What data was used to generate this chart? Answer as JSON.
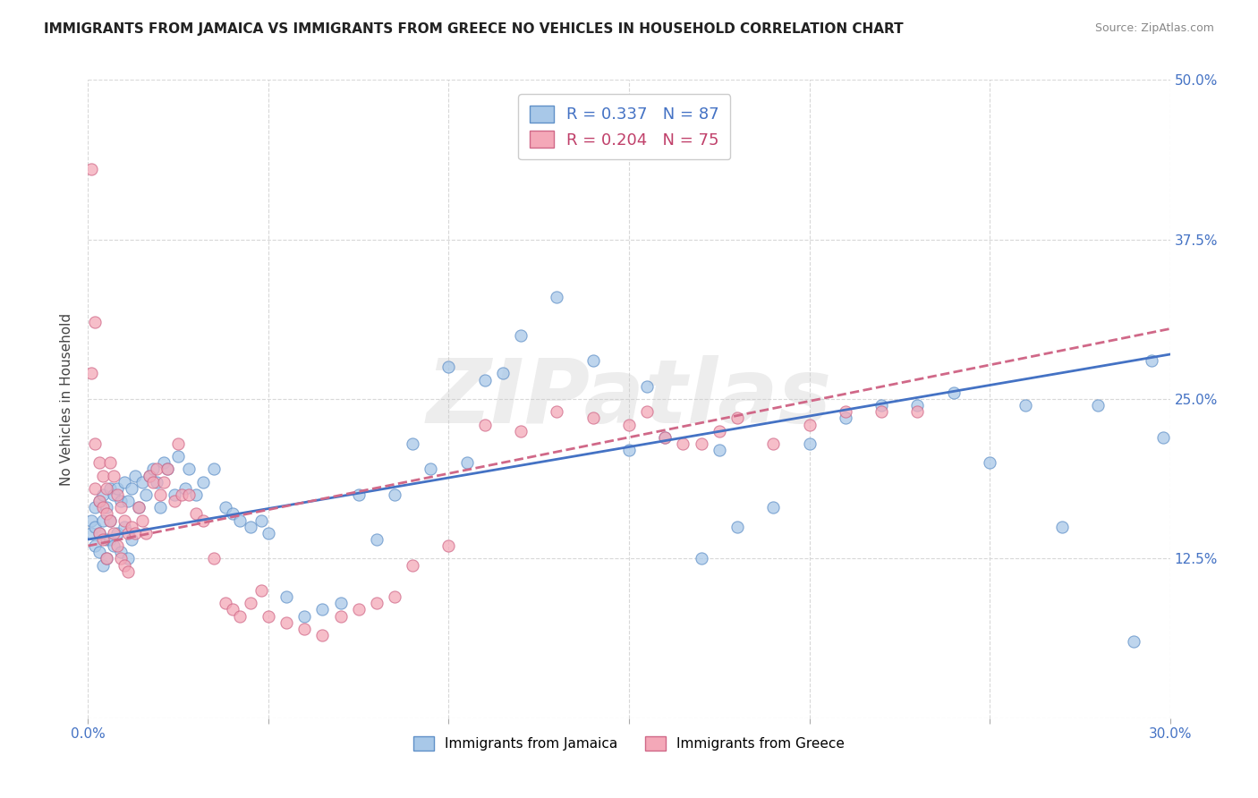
{
  "title": "IMMIGRANTS FROM JAMAICA VS IMMIGRANTS FROM GREECE NO VEHICLES IN HOUSEHOLD CORRELATION CHART",
  "source": "Source: ZipAtlas.com",
  "ylabel": "No Vehicles in Household",
  "xlim": [
    0.0,
    0.3
  ],
  "ylim": [
    0.0,
    0.5
  ],
  "jamaica_R": 0.337,
  "jamaica_N": 87,
  "greece_R": 0.204,
  "greece_N": 75,
  "jamaica_color": "#a8c8e8",
  "greece_color": "#f4a8b8",
  "jamaica_edge_color": "#6090c8",
  "greece_edge_color": "#d06888",
  "jamaica_line_color": "#4472c4",
  "greece_line_color": "#d06888",
  "watermark": "ZIPatlas",
  "jamaica_x": [
    0.001,
    0.001,
    0.002,
    0.002,
    0.002,
    0.003,
    0.003,
    0.003,
    0.004,
    0.004,
    0.004,
    0.005,
    0.005,
    0.005,
    0.006,
    0.006,
    0.006,
    0.007,
    0.007,
    0.008,
    0.008,
    0.009,
    0.009,
    0.01,
    0.01,
    0.011,
    0.011,
    0.012,
    0.012,
    0.013,
    0.014,
    0.015,
    0.016,
    0.017,
    0.018,
    0.019,
    0.02,
    0.021,
    0.022,
    0.024,
    0.025,
    0.027,
    0.028,
    0.03,
    0.032,
    0.035,
    0.038,
    0.04,
    0.042,
    0.045,
    0.048,
    0.05,
    0.055,
    0.06,
    0.065,
    0.07,
    0.075,
    0.08,
    0.085,
    0.09,
    0.095,
    0.1,
    0.105,
    0.11,
    0.115,
    0.12,
    0.13,
    0.14,
    0.15,
    0.155,
    0.16,
    0.17,
    0.175,
    0.18,
    0.19,
    0.2,
    0.21,
    0.22,
    0.23,
    0.24,
    0.25,
    0.26,
    0.27,
    0.28,
    0.29,
    0.295,
    0.298
  ],
  "jamaica_y": [
    0.145,
    0.155,
    0.135,
    0.165,
    0.15,
    0.17,
    0.145,
    0.13,
    0.175,
    0.155,
    0.12,
    0.165,
    0.14,
    0.125,
    0.18,
    0.155,
    0.14,
    0.175,
    0.135,
    0.18,
    0.145,
    0.17,
    0.13,
    0.185,
    0.15,
    0.17,
    0.125,
    0.18,
    0.14,
    0.19,
    0.165,
    0.185,
    0.175,
    0.19,
    0.195,
    0.185,
    0.165,
    0.2,
    0.195,
    0.175,
    0.205,
    0.18,
    0.195,
    0.175,
    0.185,
    0.195,
    0.165,
    0.16,
    0.155,
    0.15,
    0.155,
    0.145,
    0.095,
    0.08,
    0.085,
    0.09,
    0.175,
    0.14,
    0.175,
    0.215,
    0.195,
    0.275,
    0.2,
    0.265,
    0.27,
    0.3,
    0.33,
    0.28,
    0.21,
    0.26,
    0.22,
    0.125,
    0.21,
    0.15,
    0.165,
    0.215,
    0.235,
    0.245,
    0.245,
    0.255,
    0.2,
    0.245,
    0.15,
    0.245,
    0.06,
    0.28,
    0.22
  ],
  "greece_x": [
    0.001,
    0.001,
    0.002,
    0.002,
    0.002,
    0.003,
    0.003,
    0.003,
    0.004,
    0.004,
    0.004,
    0.005,
    0.005,
    0.005,
    0.006,
    0.006,
    0.007,
    0.007,
    0.008,
    0.008,
    0.009,
    0.009,
    0.01,
    0.01,
    0.011,
    0.011,
    0.012,
    0.013,
    0.014,
    0.015,
    0.016,
    0.017,
    0.018,
    0.019,
    0.02,
    0.021,
    0.022,
    0.024,
    0.025,
    0.026,
    0.028,
    0.03,
    0.032,
    0.035,
    0.038,
    0.04,
    0.042,
    0.045,
    0.048,
    0.05,
    0.055,
    0.06,
    0.065,
    0.07,
    0.075,
    0.08,
    0.085,
    0.09,
    0.1,
    0.11,
    0.12,
    0.13,
    0.14,
    0.15,
    0.155,
    0.16,
    0.165,
    0.17,
    0.175,
    0.18,
    0.19,
    0.2,
    0.21,
    0.22,
    0.23
  ],
  "greece_y": [
    0.43,
    0.27,
    0.31,
    0.215,
    0.18,
    0.2,
    0.17,
    0.145,
    0.19,
    0.165,
    0.14,
    0.18,
    0.16,
    0.125,
    0.2,
    0.155,
    0.19,
    0.145,
    0.175,
    0.135,
    0.165,
    0.125,
    0.155,
    0.12,
    0.145,
    0.115,
    0.15,
    0.145,
    0.165,
    0.155,
    0.145,
    0.19,
    0.185,
    0.195,
    0.175,
    0.185,
    0.195,
    0.17,
    0.215,
    0.175,
    0.175,
    0.16,
    0.155,
    0.125,
    0.09,
    0.085,
    0.08,
    0.09,
    0.1,
    0.08,
    0.075,
    0.07,
    0.065,
    0.08,
    0.085,
    0.09,
    0.095,
    0.12,
    0.135,
    0.23,
    0.225,
    0.24,
    0.235,
    0.23,
    0.24,
    0.22,
    0.215,
    0.215,
    0.225,
    0.235,
    0.215,
    0.23,
    0.24,
    0.24,
    0.24
  ],
  "jamaica_line_x0": 0.0,
  "jamaica_line_y0": 0.14,
  "jamaica_line_x1": 0.3,
  "jamaica_line_y1": 0.285,
  "greece_line_x0": 0.0,
  "greece_line_y0": 0.135,
  "greece_line_x1": 0.3,
  "greece_line_y1": 0.305
}
